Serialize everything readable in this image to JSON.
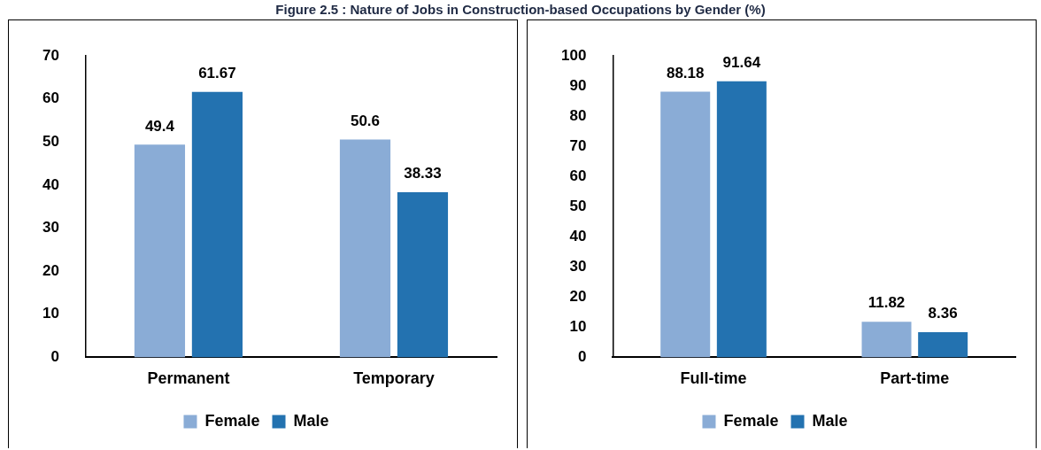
{
  "chart_data": [
    {
      "type": "bar",
      "title": "Figure 2.5 : Nature of Jobs in Construction-based Occupations by Gender (%)",
      "categories": [
        "Permanent",
        "Temporary"
      ],
      "series": [
        {
          "name": "Female",
          "color": "#8aacd6",
          "values": [
            49.4,
            50.6
          ]
        },
        {
          "name": "Male",
          "color": "#2372b0",
          "values": [
            61.67,
            38.33
          ]
        }
      ],
      "ylim": [
        0,
        70
      ],
      "yticks": [
        0,
        10,
        20,
        30,
        40,
        50,
        60,
        70
      ],
      "grid": false,
      "legend": "bottom",
      "data_labels": true
    },
    {
      "type": "bar",
      "categories": [
        "Full-time",
        "Part-time"
      ],
      "series": [
        {
          "name": "Female",
          "color": "#8aacd6",
          "values": [
            88.18,
            11.82
          ]
        },
        {
          "name": "Male",
          "color": "#2372b0",
          "values": [
            91.64,
            8.36
          ]
        }
      ],
      "ylim": [
        0,
        100
      ],
      "yticks": [
        0,
        10,
        20,
        30,
        40,
        50,
        60,
        70,
        80,
        90,
        100
      ],
      "grid": false,
      "legend": "bottom",
      "data_labels": true
    }
  ]
}
